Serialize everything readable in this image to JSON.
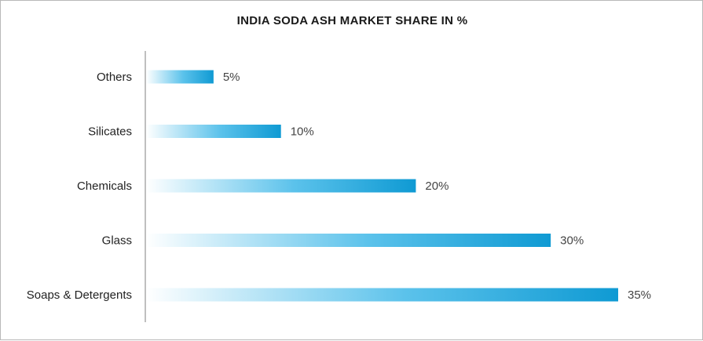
{
  "chart_data": {
    "type": "bar",
    "orientation": "horizontal",
    "title": "INDIA SODA ASH MARKET SHARE IN %",
    "categories": [
      "Others",
      "Silicates",
      "Chemicals",
      "Glass",
      "Soaps & Detergents"
    ],
    "values": [
      5,
      10,
      20,
      30,
      35
    ],
    "value_labels": [
      "5%",
      "10%",
      "20%",
      "30%",
      "35%"
    ],
    "xlim": [
      0,
      35
    ],
    "grid": false,
    "legend": "none",
    "bar_colors": {
      "start": "#ffffff",
      "mid": "#5bc2eb",
      "end": "#0f9ad3"
    },
    "axis_color": "#bfbfbf"
  }
}
